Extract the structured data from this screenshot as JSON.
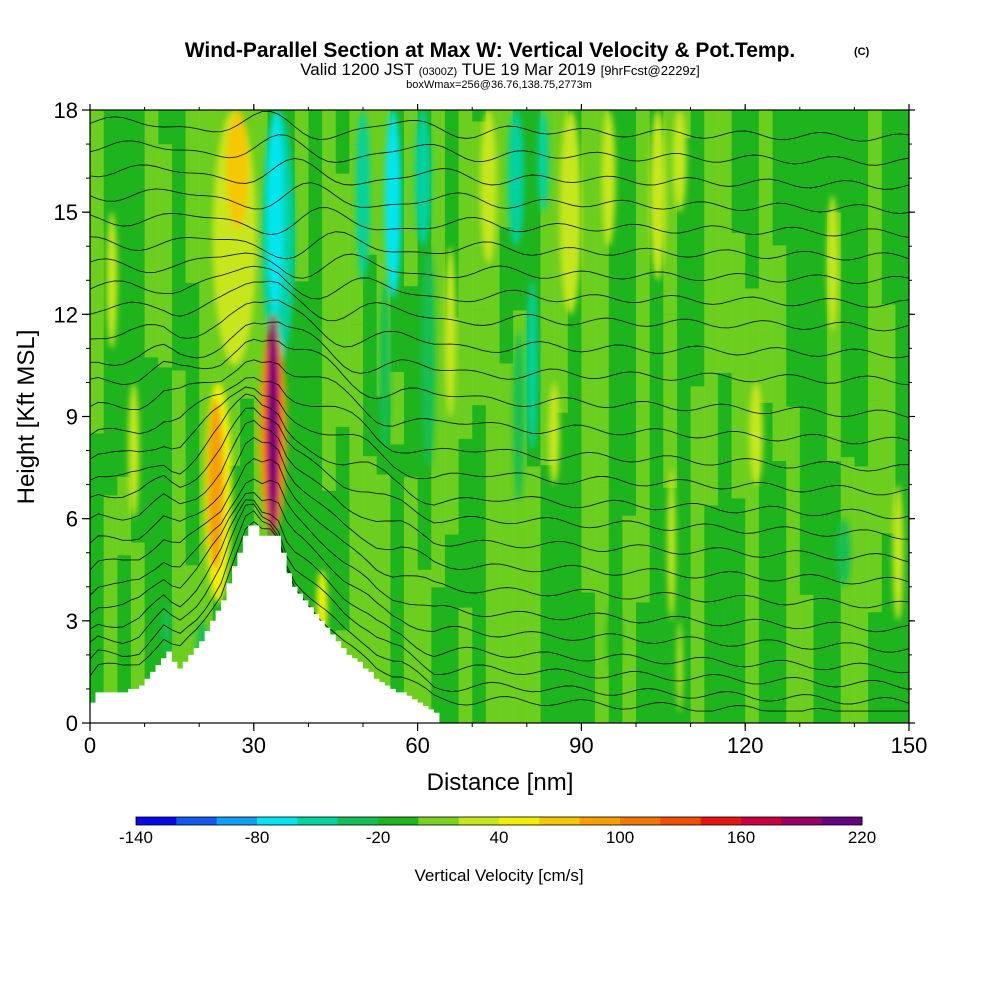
{
  "chart_data": {
    "type": "heatmap",
    "title": "Wind-Parallel Section at Max W: Vertical Velocity & Pot.Temp.",
    "title_mark": "(C)",
    "subtitle_parts": [
      "Valid 1200 JST",
      "(0300Z)",
      "TUE 19 Mar 2019",
      "[9hrFcst@2229z]"
    ],
    "subtitle2": "boxWmax=256@36.76,138.75,2773m",
    "xlabel": "Distance [nm]",
    "ylabel": "Height [Kft MSL]",
    "xlim": [
      0,
      150
    ],
    "ylim": [
      0,
      18
    ],
    "xticks": [
      "0",
      "30",
      "60",
      "90",
      "120",
      "150"
    ],
    "yticks": [
      "0",
      "3",
      "6",
      "9",
      "12",
      "15",
      "18"
    ],
    "colorbar": {
      "label": "Vertical Velocity [cm/s]",
      "tick_labels": [
        "-140",
        "-80",
        "-20",
        "40",
        "100",
        "160",
        "220"
      ],
      "min": -140,
      "max": 220,
      "step": 20,
      "colors": [
        "#0a0ae6",
        "#0f5aeb",
        "#0fa0f0",
        "#00e6f0",
        "#00d2a0",
        "#12be55",
        "#1eb41e",
        "#7ad21e",
        "#c8e61e",
        "#f0f000",
        "#f5c800",
        "#f5a000",
        "#f07800",
        "#ec5000",
        "#e61414",
        "#c8003c",
        "#960064",
        "#640082"
      ]
    },
    "terrain_profile": {
      "x": [
        0,
        1,
        2,
        3,
        4,
        5,
        6,
        7,
        8,
        9,
        10,
        11,
        12,
        13,
        14,
        15,
        16,
        17,
        18,
        19,
        20,
        21,
        22,
        23,
        24,
        25,
        26,
        27,
        28,
        29,
        30,
        31,
        32,
        33,
        34,
        35,
        36,
        37,
        38,
        39,
        40,
        41,
        42,
        43,
        44,
        45,
        46,
        47,
        48,
        49,
        50,
        51,
        52,
        53,
        54,
        55,
        56,
        57,
        58,
        59,
        60,
        61,
        62,
        63,
        64
      ],
      "y": [
        0.6,
        0.9,
        0.9,
        0.9,
        0.9,
        0.9,
        0.9,
        1.0,
        1.0,
        1.1,
        1.3,
        1.5,
        1.7,
        1.9,
        2.1,
        1.8,
        1.6,
        1.8,
        2.0,
        2.2,
        2.4,
        2.7,
        3.0,
        3.3,
        3.6,
        4.1,
        4.6,
        5.0,
        5.5,
        5.8,
        5.8,
        5.5,
        5.5,
        5.5,
        5.5,
        5.0,
        4.4,
        4.0,
        3.8,
        3.6,
        3.4,
        3.2,
        3.0,
        2.8,
        2.6,
        2.4,
        2.2,
        2.0,
        1.9,
        1.8,
        1.6,
        1.5,
        1.3,
        1.2,
        1.1,
        1.0,
        0.9,
        0.9,
        0.8,
        0.7,
        0.6,
        0.5,
        0.4,
        0.3,
        0.3
      ]
    },
    "vertical_velocity_features": [
      {
        "x": 33.5,
        "width": 1.6,
        "ymin": 5.5,
        "ymax": 12.0,
        "value": 200
      },
      {
        "x": 33.5,
        "width": 3.0,
        "ymin": 5.5,
        "ymax": 12.0,
        "value": 140
      },
      {
        "x": 33.5,
        "width": 5.0,
        "ymin": 5.5,
        "ymax": 11.5,
        "value": 80
      },
      {
        "x": 23.0,
        "width": 3.0,
        "ymin": 4.5,
        "ymax": 9.5,
        "value": 90
      },
      {
        "x": 23.5,
        "width": 5.0,
        "ymin": 3.5,
        "ymax": 10.0,
        "value": 45
      },
      {
        "x": 27.0,
        "width": 4.0,
        "ymin": 14.5,
        "ymax": 18.0,
        "value": 70
      },
      {
        "x": 26.5,
        "width": 8.0,
        "ymin": 10.5,
        "ymax": 18.0,
        "value": 35
      },
      {
        "x": 34.0,
        "width": 3.0,
        "ymin": 12.0,
        "ymax": 18.0,
        "value": -80
      },
      {
        "x": 34.5,
        "width": 6.0,
        "ymin": 10.5,
        "ymax": 18.0,
        "value": -55
      },
      {
        "x": 50.0,
        "width": 2.5,
        "ymin": 13.0,
        "ymax": 18.0,
        "value": -60
      },
      {
        "x": 55.5,
        "width": 3.0,
        "ymin": 12.5,
        "ymax": 18.0,
        "value": -65
      },
      {
        "x": 61.0,
        "width": 3.0,
        "ymin": 14.0,
        "ymax": 18.0,
        "value": -60
      },
      {
        "x": 78.0,
        "width": 3.0,
        "ymin": 14.0,
        "ymax": 18.0,
        "value": -60
      },
      {
        "x": 83.0,
        "width": 2.0,
        "ymin": 15.0,
        "ymax": 18.0,
        "value": -55
      },
      {
        "x": 81.0,
        "width": 2.0,
        "ymin": 8.0,
        "ymax": 13.0,
        "value": -45
      },
      {
        "x": 78.5,
        "width": 2.0,
        "ymin": 6.5,
        "ymax": 11.5,
        "value": -40
      },
      {
        "x": 54.0,
        "width": 2.0,
        "ymin": 8.0,
        "ymax": 13.0,
        "value": -30
      },
      {
        "x": 62.0,
        "width": 2.5,
        "ymin": 7.5,
        "ymax": 14.0,
        "value": -35
      },
      {
        "x": 73.0,
        "width": 3.0,
        "ymin": 13.5,
        "ymax": 18.0,
        "value": 30
      },
      {
        "x": 88.0,
        "width": 4.0,
        "ymin": 12.0,
        "ymax": 18.0,
        "value": 30
      },
      {
        "x": 95.0,
        "width": 2.5,
        "ymin": 14.0,
        "ymax": 18.0,
        "value": 35
      },
      {
        "x": 104.0,
        "width": 3.0,
        "ymin": 13.0,
        "ymax": 18.0,
        "value": 30
      },
      {
        "x": 108.0,
        "width": 2.5,
        "ymin": 15.0,
        "ymax": 18.0,
        "value": 30
      },
      {
        "x": 136.0,
        "width": 2.0,
        "ymin": 11.5,
        "ymax": 15.5,
        "value": 35
      },
      {
        "x": 42.5,
        "width": 2.0,
        "ymin": 2.5,
        "ymax": 4.5,
        "value": 40
      },
      {
        "x": 66.0,
        "width": 2.0,
        "ymin": 9.0,
        "ymax": 14.0,
        "value": 25
      },
      {
        "x": 85.0,
        "width": 2.0,
        "ymin": 7.0,
        "ymax": 10.0,
        "value": 35
      },
      {
        "x": 106.5,
        "width": 1.5,
        "ymin": 3.0,
        "ymax": 7.5,
        "value": 30
      },
      {
        "x": 108.0,
        "width": 1.0,
        "ymin": 0.3,
        "ymax": 3.0,
        "value": 30
      },
      {
        "x": 122.0,
        "width": 2.5,
        "ymin": 7.0,
        "ymax": 10.0,
        "value": 25
      },
      {
        "x": 138.0,
        "width": 2.5,
        "ymin": 4.0,
        "ymax": 6.0,
        "value": -25
      },
      {
        "x": 116.0,
        "width": 2.0,
        "ymin": 2.0,
        "ymax": 4.0,
        "value": -15
      },
      {
        "x": 96.0,
        "width": 2.5,
        "ymin": 1.5,
        "ymax": 3.5,
        "value": -15
      },
      {
        "x": 20.5,
        "width": 2.0,
        "ymin": 1.5,
        "ymax": 3.0,
        "value": -25
      },
      {
        "x": 14.0,
        "width": 1.5,
        "ymin": 2.0,
        "ymax": 3.5,
        "value": -25
      },
      {
        "x": 8.0,
        "width": 2.0,
        "ymin": 6.0,
        "ymax": 10.0,
        "value": 25
      },
      {
        "x": 4.0,
        "width": 2.0,
        "ymin": 11.0,
        "ymax": 15.0,
        "value": 25
      },
      {
        "x": 148.0,
        "width": 2.0,
        "ymin": 3.0,
        "ymax": 7.0,
        "value": 25
      }
    ],
    "isentrope_count": 26,
    "isentrope_base_heights_kft": [
      0.4,
      0.8,
      1.3,
      1.8,
      2.4,
      3.0,
      3.7,
      4.4,
      5.1,
      5.8,
      6.4,
      7.1,
      7.8,
      8.6,
      9.4,
      10.2,
      11.0,
      11.8,
      12.5,
      13.2,
      13.9,
      14.6,
      15.3,
      16.0,
      16.7,
      17.4
    ]
  }
}
